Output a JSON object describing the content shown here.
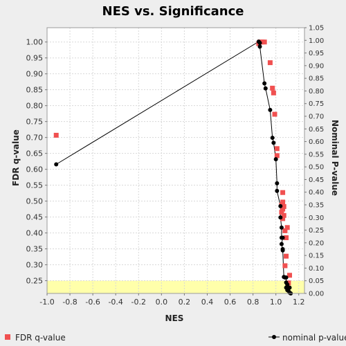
{
  "chart_data": {
    "type": "scatter",
    "title": "NES vs. Significance",
    "xlabel": "NES",
    "ylabel": "FDR q-value",
    "y2label": "Nominal P-value",
    "xlim": [
      -1.0,
      1.25
    ],
    "ylim": [
      0.21,
      1.045
    ],
    "y2lim": [
      0.0,
      1.05
    ],
    "xticks": [
      "-1.0",
      "-0.8",
      "-0.6",
      "-0.4",
      "-0.2",
      "0.0",
      "0.2",
      "0.4",
      "0.6",
      "0.8",
      "1.0",
      "1.2"
    ],
    "yticks": [
      "0.25",
      "0.30",
      "0.35",
      "0.40",
      "0.45",
      "0.50",
      "0.55",
      "0.60",
      "0.65",
      "0.70",
      "0.75",
      "0.80",
      "0.85",
      "0.90",
      "0.95",
      "1.00"
    ],
    "y2ticks": [
      "0.00",
      "0.05",
      "0.10",
      "0.15",
      "0.20",
      "0.25",
      "0.30",
      "0.35",
      "0.40",
      "0.45",
      "0.50",
      "0.55",
      "0.60",
      "0.65",
      "0.70",
      "0.75",
      "0.80",
      "0.85",
      "0.90",
      "0.95",
      "1.00",
      "1.05"
    ],
    "grid": true,
    "highlight_band": {
      "y_from": 0.21,
      "y_to": 0.25,
      "color": "#ffffaa"
    },
    "legend_position": "bottom",
    "series": [
      {
        "name": "FDR q-value",
        "axis": "left",
        "marker": "square",
        "color": "#f05050",
        "points": [
          [
            -0.92,
            0.707
          ],
          [
            0.85,
            0.995
          ],
          [
            0.86,
            1.0
          ],
          [
            0.88,
            1.0
          ],
          [
            0.9,
            1.0
          ],
          [
            0.95,
            0.935
          ],
          [
            0.97,
            0.855
          ],
          [
            0.98,
            0.84
          ],
          [
            0.99,
            0.773
          ],
          [
            1.01,
            0.665
          ],
          [
            1.01,
            0.643
          ],
          [
            1.06,
            0.527
          ],
          [
            1.06,
            0.497
          ],
          [
            1.05,
            0.487
          ],
          [
            1.07,
            0.483
          ],
          [
            1.06,
            0.475
          ],
          [
            1.05,
            0.465
          ],
          [
            1.07,
            0.455
          ],
          [
            1.06,
            0.445
          ],
          [
            1.1,
            0.417
          ],
          [
            1.08,
            0.407
          ],
          [
            1.09,
            0.385
          ],
          [
            1.09,
            0.327
          ],
          [
            1.08,
            0.297
          ],
          [
            1.12,
            0.267
          ],
          [
            1.11,
            0.243
          ]
        ]
      },
      {
        "name": "nominal p-value",
        "axis": "right",
        "marker": "circle",
        "line": true,
        "color": "#000000",
        "points": [
          [
            -0.92,
            0.51
          ],
          [
            0.85,
            0.995
          ],
          [
            0.86,
            0.99
          ],
          [
            0.86,
            0.975
          ],
          [
            0.9,
            0.83
          ],
          [
            0.91,
            0.81
          ],
          [
            0.95,
            0.725
          ],
          [
            0.97,
            0.615
          ],
          [
            0.98,
            0.595
          ],
          [
            1.0,
            0.53
          ],
          [
            1.01,
            0.435
          ],
          [
            1.01,
            0.405
          ],
          [
            1.04,
            0.345
          ],
          [
            1.04,
            0.3
          ],
          [
            1.05,
            0.26
          ],
          [
            1.05,
            0.22
          ],
          [
            1.06,
            0.22
          ],
          [
            1.05,
            0.195
          ],
          [
            1.06,
            0.175
          ],
          [
            1.06,
            0.17
          ],
          [
            1.07,
            0.065
          ],
          [
            1.08,
            0.063
          ],
          [
            1.09,
            0.063
          ],
          [
            1.09,
            0.043
          ],
          [
            1.1,
            0.035
          ],
          [
            1.09,
            0.023
          ],
          [
            1.12,
            0.023
          ],
          [
            1.1,
            0.013
          ],
          [
            1.11,
            0.01
          ],
          [
            1.12,
            0.003
          ],
          [
            1.13,
            0.0
          ]
        ]
      }
    ]
  }
}
